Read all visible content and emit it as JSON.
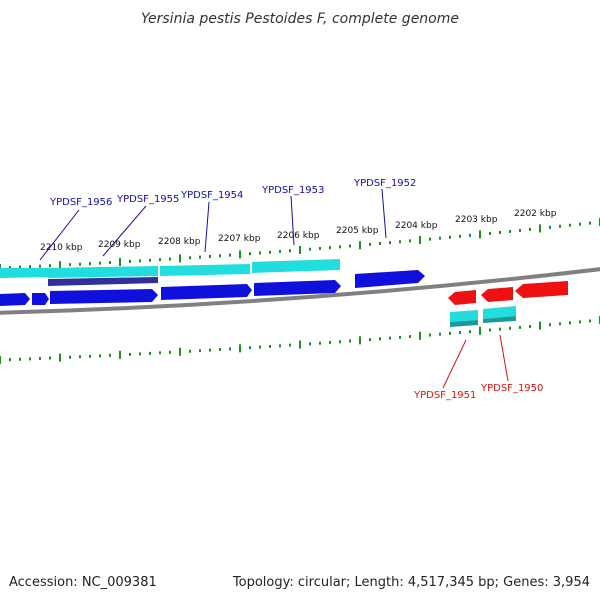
{
  "title": "Yersinia pestis Pestoides F, complete genome",
  "footer": {
    "accession": "Accession: NC_009381",
    "summary": "Topology: circular; Length: 4,517,345 bp; Genes: 3,954"
  },
  "colors": {
    "backbone": "#808080",
    "tick": "#1f8f1f",
    "forward_cds": "#1010dd",
    "reverse_cds": "#ee1111",
    "gene_feature": "#22dddd",
    "gene_feature_dark": "#1a9a9a",
    "forward_label": "#1010aa",
    "reverse_label": "#dd1111"
  },
  "scale_labels": [
    "2210 kbp",
    "2209 kbp",
    "2208 kbp",
    "2207 kbp",
    "2206 kbp",
    "2205 kbp",
    "2204 kbp",
    "2203 kbp",
    "2202 kbp"
  ],
  "forward_gene_labels": [
    "YPDSF_1956",
    "YPDSF_1955",
    "YPDSF_1954",
    "YPDSF_1953",
    "YPDSF_1952"
  ],
  "reverse_gene_labels": [
    "YPDSF_1951",
    "YPDSF_1950"
  ]
}
